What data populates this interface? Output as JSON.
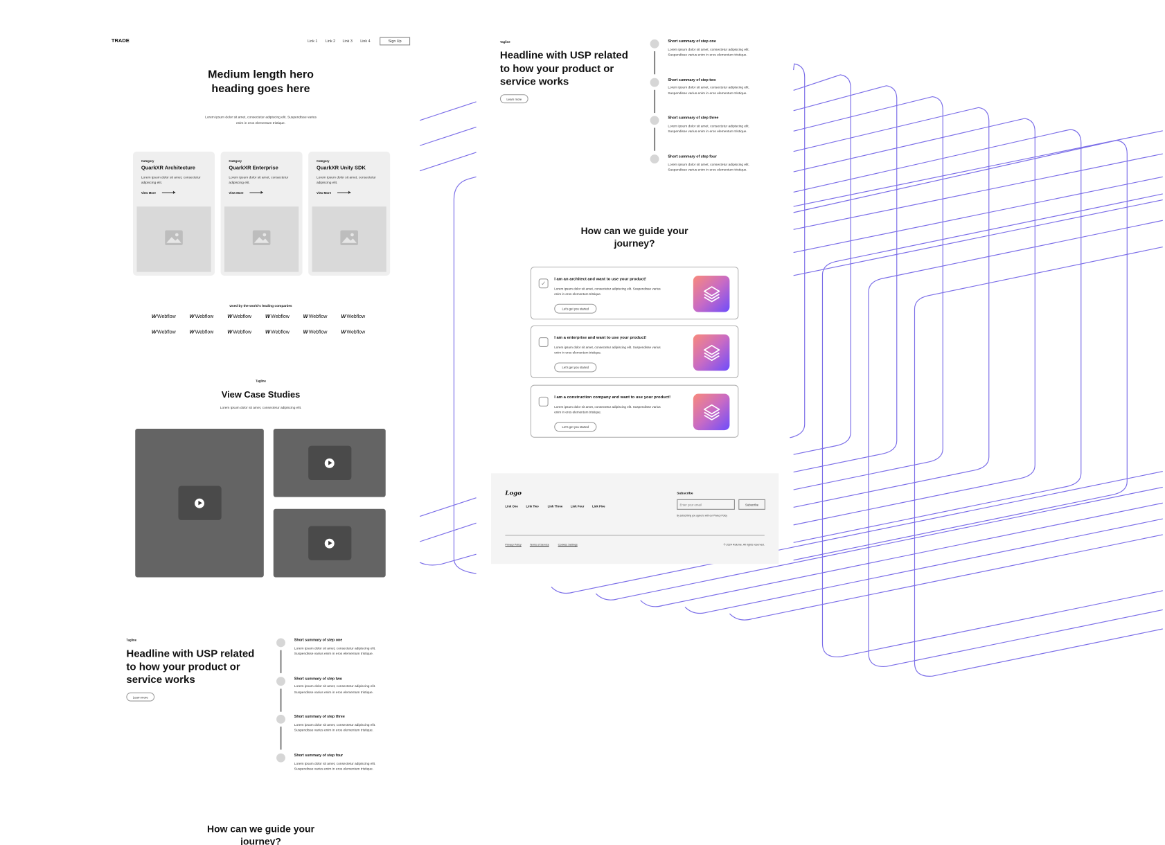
{
  "left_page": {
    "nav": {
      "brand": "TRADE",
      "links": [
        "Link 1",
        "Link 2",
        "Link 3",
        "Link 4"
      ],
      "signup_label": "Sign Up"
    },
    "hero": {
      "heading": "Medium length hero heading goes here",
      "subtext": "Lorem ipsum dolor sit amet, consectetur adipiscing elit. Suspendisse varius enim in eros elementum tristique."
    },
    "cards": [
      {
        "category": "Category",
        "title": "QuarkXR Architecture",
        "description": "Lorem ipsum dolor sit amet, consectetur adipiscing elit.",
        "link": "View More"
      },
      {
        "category": "Category",
        "title": "QuarkXR Enterprise",
        "description": "Lorem ipsum dolor sit amet, consectetur adipiscing elit.",
        "link": "View More"
      },
      {
        "category": "Category",
        "title": "QuarkXR Unity SDK",
        "description": "Lorem ipsum dolor sit amet, consectetur adipiscing elit.",
        "link": "View More"
      }
    ],
    "logos": {
      "heading": "Used by the world's leading companies",
      "mark": "W",
      "name": "Webflow",
      "count": 12
    },
    "case_studies": {
      "tagline": "Tagline",
      "heading": "View Case Studies",
      "subtext": "Lorem ipsum dolor sit amet, consectetur adipiscing elit."
    },
    "how_it_works": {
      "tagline": "Tagline",
      "headline": "Headline with USP related to how your product or service works",
      "button": "Learn more",
      "steps": [
        {
          "title": "Short summary of step one",
          "description": "Lorem ipsum dolor sit amet, consectetur adipiscing elit. Suspendisse varius enim in eros elementum tristique."
        },
        {
          "title": "Short summary of step two",
          "description": "Lorem ipsum dolor sit amet, consectetur adipiscing elit. Suspendisse varius enim in eros elementum tristique."
        },
        {
          "title": "Short summary of step three",
          "description": "Lorem ipsum dolor sit amet, consectetur adipiscing elit. Suspendisse varius enim in eros elementum tristique."
        },
        {
          "title": "Short summary of step four",
          "description": "Lorem ipsum dolor sit amet, consectetur adipiscing elit. Suspendisse varius enim in eros elementum tristique."
        }
      ]
    },
    "guide": {
      "heading": "How can we guide your journey?"
    }
  },
  "right_page": {
    "how_it_works": {
      "tagline": "Tagline",
      "headline": "Headline with USP related to how your product or service works",
      "button": "Learn more",
      "steps": [
        {
          "title": "Short summary of step one",
          "description": "Lorem ipsum dolor sit amet, consectetur adipiscing elit. Suspendisse varius enim in eros elementum tristique."
        },
        {
          "title": "Short summary of step two",
          "description": "Lorem ipsum dolor sit amet, consectetur adipiscing elit. Suspendisse varius enim in eros elementum tristique."
        },
        {
          "title": "Short summary of step three",
          "description": "Lorem ipsum dolor sit amet, consectetur adipiscing elit. Suspendisse varius enim in eros elementum tristique."
        },
        {
          "title": "Short summary of step four",
          "description": "Lorem ipsum dolor sit amet, consectetur adipiscing elit. Suspendisse varius enim in eros elementum tristique."
        }
      ]
    },
    "guide": {
      "heading": "How can we guide your journey?",
      "options": [
        {
          "title": "I am an architect and want to use your product!",
          "description": "Lorem ipsum dolor sit amet, consectetur adipiscing elit. Suspendisse varius enim in eros elementum tristique.",
          "button": "Let's get you started",
          "checked": true,
          "icon": "layers-icon"
        },
        {
          "title": "I am a enterprise and want to use your product!",
          "description": "Lorem ipsum dolor sit amet, consectetur adipiscing elit. Suspendisse varius enim in eros elementum tristique.",
          "button": "Let's get you started",
          "checked": false,
          "icon": "layers-icon"
        },
        {
          "title": "I am a construction company and want to use your product!",
          "description": "Lorem ipsum dolor sit amet, consectetur adipiscing elit. Suspendisse varius enim in eros elementum tristique.",
          "button": "Let's get you started",
          "checked": false,
          "icon": "layers-icon"
        }
      ]
    },
    "footer": {
      "logo": "Logo",
      "links": [
        "Link One",
        "Link Two",
        "Link Three",
        "Link Four",
        "Link Five"
      ],
      "subscribe_label": "Subscribe",
      "email_placeholder": "Enter your email",
      "subscribe_button": "Subscribe",
      "disclaimer": "By subscribing you agree to with our Privacy Policy",
      "bottom_links": [
        "Privacy Policy",
        "Terms of Service",
        "Cookies Settings"
      ],
      "copyright": "© 2024 Relume. All rights reserved."
    }
  },
  "colors": {
    "accent_lines": "#7b6ee8",
    "video_bg": "#646464",
    "card_bg": "#efefef",
    "footer_bg": "#f4f4f4",
    "icon_gradient": [
      "#f98a7b",
      "#6e4dfb"
    ]
  }
}
